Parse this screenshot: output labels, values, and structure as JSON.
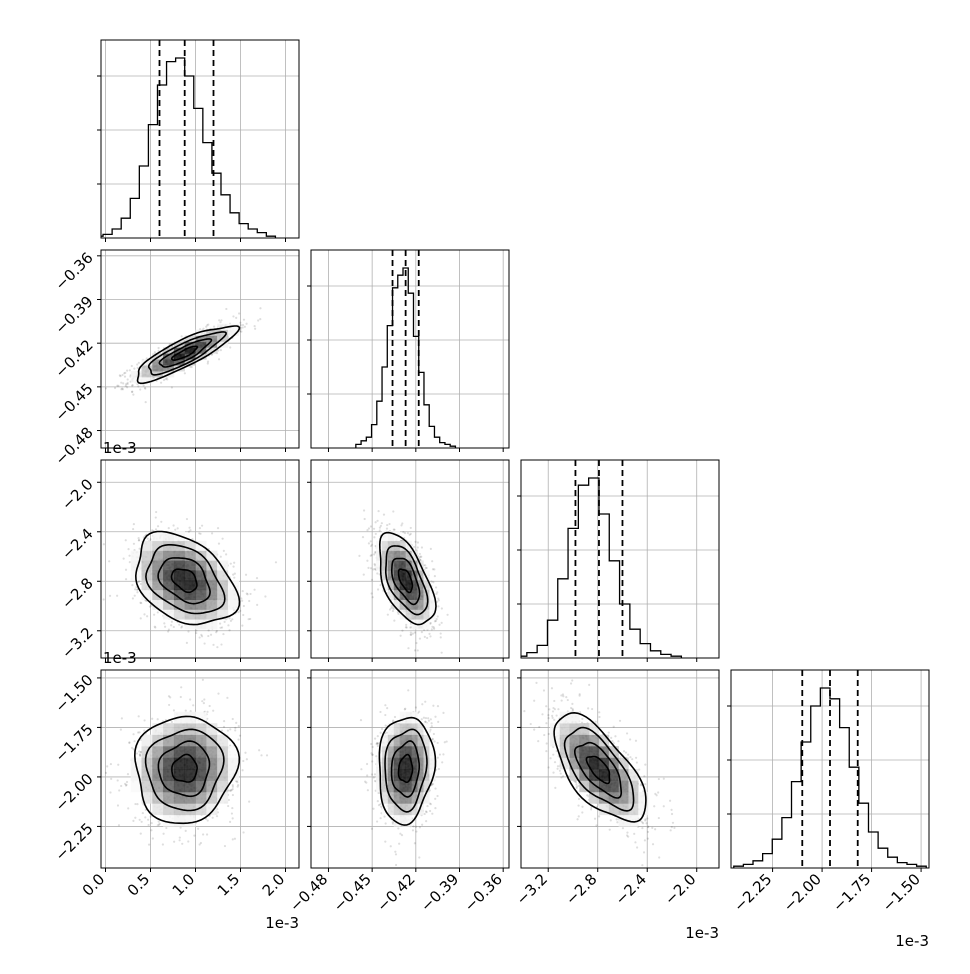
{
  "chart_data": {
    "type": "corner",
    "n_params": 4,
    "grid": true,
    "offset_label": "1e-3",
    "params": [
      {
        "lim": [
          -0.05,
          2.15
        ],
        "ticks": [
          0.0,
          0.5,
          1.0,
          1.5,
          2.0
        ],
        "tick_labels": [
          "0.0",
          "0.5",
          "1.0",
          "1.5",
          "2.0"
        ],
        "scale": 0.001,
        "quantiles": [
          0.6,
          0.88,
          1.2
        ],
        "mean": 0.88,
        "sd": 0.28,
        "hist": [
          0.01,
          0.02,
          0.05,
          0.11,
          0.22,
          0.4,
          0.63,
          0.85,
          0.98,
          1.0,
          0.9,
          0.72,
          0.53,
          0.36,
          0.24,
          0.14,
          0.08,
          0.05,
          0.03,
          0.01
        ]
      },
      {
        "lim": [
          -0.492,
          -0.356
        ],
        "ticks": [
          -0.48,
          -0.45,
          -0.42,
          -0.39,
          -0.36
        ],
        "tick_labels": [
          "−0.48",
          "−0.45",
          "−0.42",
          "−0.39",
          "−0.36"
        ],
        "scale": 1,
        "quantiles": [
          -0.436,
          -0.427,
          -0.418
        ],
        "mean": -0.427,
        "sd": 0.0095,
        "hist": [
          0.02,
          0.04,
          0.06,
          0.13,
          0.26,
          0.45,
          0.68,
          0.89,
          0.96,
          1.0,
          0.86,
          0.62,
          0.42,
          0.24,
          0.12,
          0.06,
          0.03,
          0.02,
          0.01
        ]
      },
      {
        "lim": [
          -3.42,
          -1.82
        ],
        "ticks": [
          -3.2,
          -2.8,
          -2.4,
          -2.0
        ],
        "tick_labels": [
          "−3.2",
          "−2.8",
          "−2.4",
          "−2.0"
        ],
        "scale": 0.001,
        "quantiles": [
          -2.98,
          -2.79,
          -2.6
        ],
        "mean": -2.79,
        "sd": 0.185,
        "hist": [
          0.01,
          0.03,
          0.07,
          0.21,
          0.44,
          0.72,
          0.96,
          1.0,
          0.8,
          0.54,
          0.3,
          0.16,
          0.08,
          0.04,
          0.02,
          0.01
        ]
      },
      {
        "lim": [
          -2.46,
          -1.46
        ],
        "ticks": [
          -2.25,
          -2.0,
          -1.75,
          -1.5
        ],
        "tick_labels": [
          "−2.25",
          "−2.00",
          "−1.75",
          "−1.50"
        ],
        "scale": 0.001,
        "quantiles": [
          -2.1,
          -1.96,
          -1.82
        ],
        "mean": -1.96,
        "sd": 0.135,
        "hist": [
          0.01,
          0.02,
          0.04,
          0.08,
          0.16,
          0.28,
          0.48,
          0.7,
          0.9,
          1.0,
          0.94,
          0.78,
          0.56,
          0.36,
          0.2,
          0.11,
          0.06,
          0.03,
          0.02,
          0.01
        ]
      }
    ],
    "correlations": [
      [
        1,
        0.85,
        -0.35,
        0.05
      ],
      [
        0.85,
        1,
        -0.55,
        0.1
      ],
      [
        -0.35,
        -0.55,
        1,
        -0.65
      ],
      [
        0.05,
        0.1,
        -0.65,
        1
      ]
    ],
    "contour_levels_sigma": [
      0.5,
      1.0,
      1.5,
      2.0
    ],
    "quantile_line_style": "dashed"
  }
}
